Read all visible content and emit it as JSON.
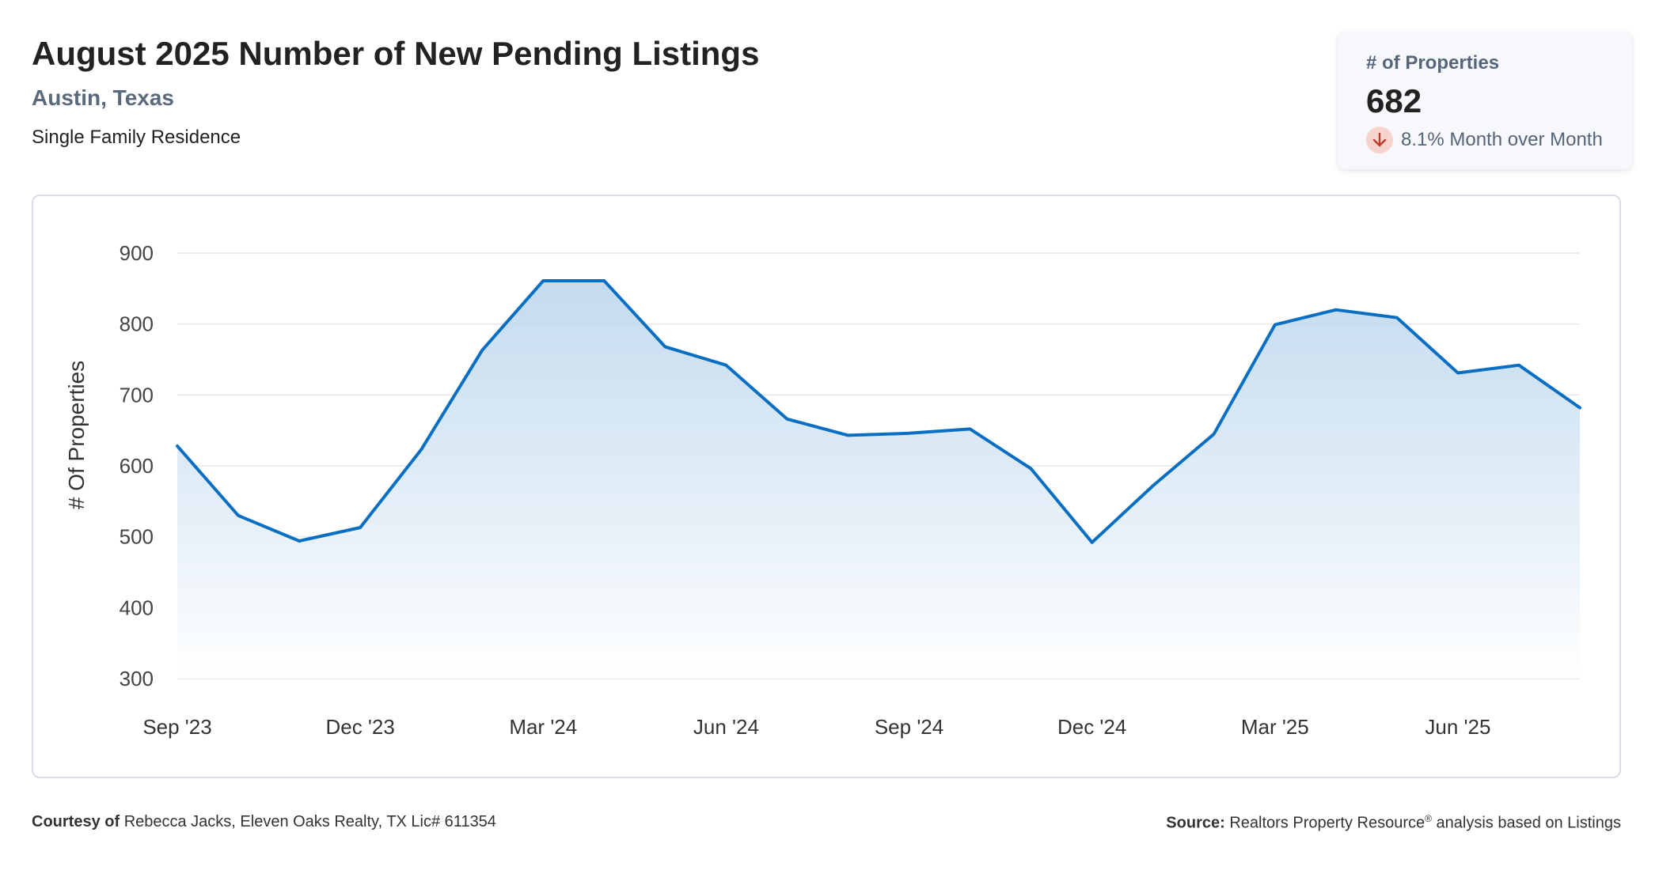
{
  "header": {
    "title": "August 2025 Number of New Pending Listings",
    "location": "Austin, Texas",
    "property_type": "Single Family Residence"
  },
  "kpi": {
    "label": "# of Properties",
    "value": "682",
    "change": "8.1% Month over Month",
    "direction": "down",
    "arrow_icon": "arrow-down-icon",
    "arrow_color": "#c0392b",
    "arrow_bg": "#f6d4cc"
  },
  "footer": {
    "courtesy_label": "Courtesy of",
    "courtesy_text": "Rebecca Jacks, Eleven Oaks Realty, TX Lic# 611354",
    "source_label": "Source:",
    "source_name": "Realtors Property Resource",
    "source_mark": "®",
    "source_suffix": "analysis based on Listings"
  },
  "colors": {
    "line": "#0a6fc2",
    "fill_top": "#b9d5ec",
    "fill_bottom": "#ffffff",
    "grid": "#e3e6ea"
  },
  "chart_data": {
    "type": "area",
    "ylabel": "# Of Properties",
    "ylim": [
      300,
      900
    ],
    "yticks": [
      300,
      400,
      500,
      600,
      700,
      800,
      900
    ],
    "grid": true,
    "x": [
      "Sep '23",
      "Oct '23",
      "Nov '23",
      "Dec '23",
      "Jan '24",
      "Feb '24",
      "Mar '24",
      "Apr '24",
      "May '24",
      "Jun '24",
      "Jul '24",
      "Aug '24",
      "Sep '24",
      "Oct '24",
      "Nov '24",
      "Dec '24",
      "Jan '25",
      "Feb '25",
      "Mar '25",
      "Apr '25",
      "May '25",
      "Jun '25",
      "Jul '25",
      "Aug '25"
    ],
    "xtick_labels": [
      "Sep '23",
      "Dec '23",
      "Mar '24",
      "Jun '24",
      "Sep '24",
      "Dec '24",
      "Mar '25",
      "Jun '25"
    ],
    "values": [
      628,
      530,
      494,
      513,
      623,
      763,
      861,
      861,
      768,
      742,
      666,
      643,
      646,
      652,
      596,
      492,
      572,
      645,
      799,
      820,
      809,
      731,
      742,
      682
    ]
  }
}
